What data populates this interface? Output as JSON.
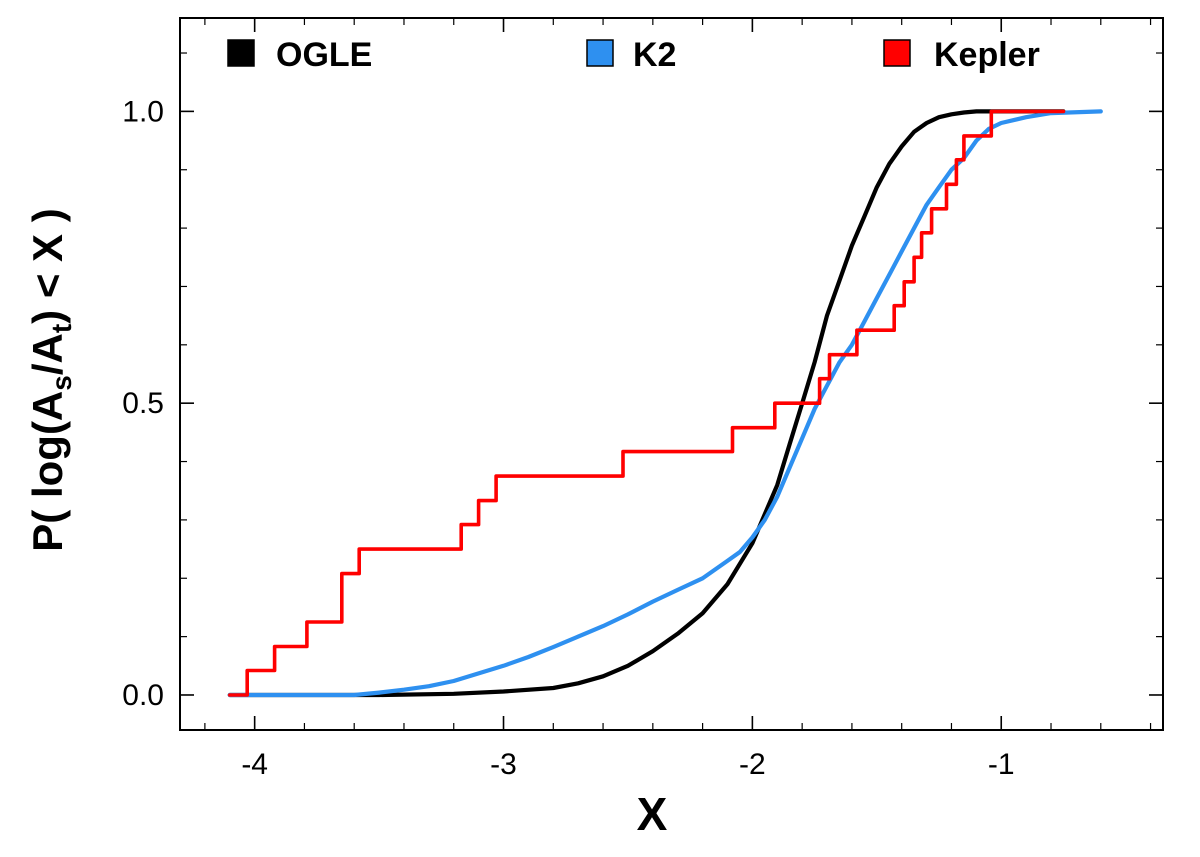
{
  "chart_data": {
    "type": "line",
    "xlabel": "X",
    "ylabel": {
      "prefix": "P( log(A",
      "sub1": "s",
      "mid": "/A",
      "sub2": "t",
      "suffix": ") < X )"
    },
    "xlim": [
      -4.3,
      -0.35
    ],
    "ylim": [
      -0.06,
      1.16
    ],
    "xticks": [
      -4,
      -3,
      -2,
      -1
    ],
    "xtick_labels": [
      "-4",
      "-3",
      "-2",
      "-1"
    ],
    "yticks": [
      0.0,
      0.5,
      1.0
    ],
    "ytick_labels": [
      "0.0",
      "0.5",
      "1.0"
    ],
    "legend_position": "top",
    "series": [
      {
        "name": "OGLE",
        "color": "#000000",
        "style": "smooth",
        "x": [
          -4.1,
          -3.5,
          -3.2,
          -3.0,
          -2.8,
          -2.7,
          -2.6,
          -2.5,
          -2.4,
          -2.3,
          -2.2,
          -2.1,
          -2.0,
          -1.9,
          -1.85,
          -1.8,
          -1.75,
          -1.7,
          -1.65,
          -1.6,
          -1.55,
          -1.5,
          -1.45,
          -1.4,
          -1.35,
          -1.3,
          -1.25,
          -1.2,
          -1.15,
          -1.1,
          -1.05,
          -0.75
        ],
        "y": [
          0.0,
          0.0,
          0.002,
          0.006,
          0.012,
          0.02,
          0.032,
          0.05,
          0.075,
          0.105,
          0.14,
          0.19,
          0.26,
          0.36,
          0.43,
          0.5,
          0.57,
          0.65,
          0.71,
          0.77,
          0.82,
          0.87,
          0.91,
          0.94,
          0.965,
          0.98,
          0.99,
          0.995,
          0.998,
          1.0,
          1.0,
          1.0
        ]
      },
      {
        "name": "K2",
        "color": "#2e90f0",
        "style": "smooth",
        "x": [
          -4.1,
          -3.6,
          -3.5,
          -3.4,
          -3.3,
          -3.2,
          -3.1,
          -3.0,
          -2.9,
          -2.8,
          -2.7,
          -2.6,
          -2.5,
          -2.4,
          -2.3,
          -2.2,
          -2.1,
          -2.05,
          -2.0,
          -1.95,
          -1.9,
          -1.85,
          -1.8,
          -1.75,
          -1.7,
          -1.65,
          -1.6,
          -1.55,
          -1.5,
          -1.45,
          -1.4,
          -1.35,
          -1.3,
          -1.25,
          -1.2,
          -1.15,
          -1.1,
          -1.05,
          -1.0,
          -0.9,
          -0.8,
          -0.6
        ],
        "y": [
          0.0,
          0.0,
          0.004,
          0.009,
          0.015,
          0.024,
          0.037,
          0.05,
          0.065,
          0.082,
          0.1,
          0.118,
          0.138,
          0.16,
          0.18,
          0.2,
          0.23,
          0.245,
          0.27,
          0.3,
          0.34,
          0.39,
          0.44,
          0.49,
          0.53,
          0.57,
          0.6,
          0.64,
          0.68,
          0.72,
          0.76,
          0.8,
          0.84,
          0.87,
          0.9,
          0.92,
          0.95,
          0.97,
          0.98,
          0.99,
          0.997,
          1.0
        ]
      },
      {
        "name": "Kepler",
        "color": "#ff0000",
        "style": "step",
        "x": [
          -4.1,
          -4.03,
          -3.92,
          -3.79,
          -3.65,
          -3.58,
          -3.17,
          -3.1,
          -3.03,
          -2.98,
          -2.52,
          -2.08,
          -1.91,
          -1.77,
          -1.73,
          -1.69,
          -1.63,
          -1.58,
          -1.43,
          -1.39,
          -1.35,
          -1.32,
          -1.28,
          -1.22,
          -1.18,
          -1.15,
          -1.12,
          -1.08,
          -1.04,
          -0.75
        ],
        "y": [
          0.0,
          0.042,
          0.083,
          0.125,
          0.208,
          0.25,
          0.292,
          0.333,
          0.375,
          0.375,
          0.417,
          0.458,
          0.5,
          0.5,
          0.542,
          0.583,
          0.583,
          0.625,
          0.667,
          0.708,
          0.75,
          0.792,
          0.833,
          0.875,
          0.917,
          0.958,
          0.958,
          0.958,
          1.0,
          1.0
        ]
      }
    ]
  }
}
